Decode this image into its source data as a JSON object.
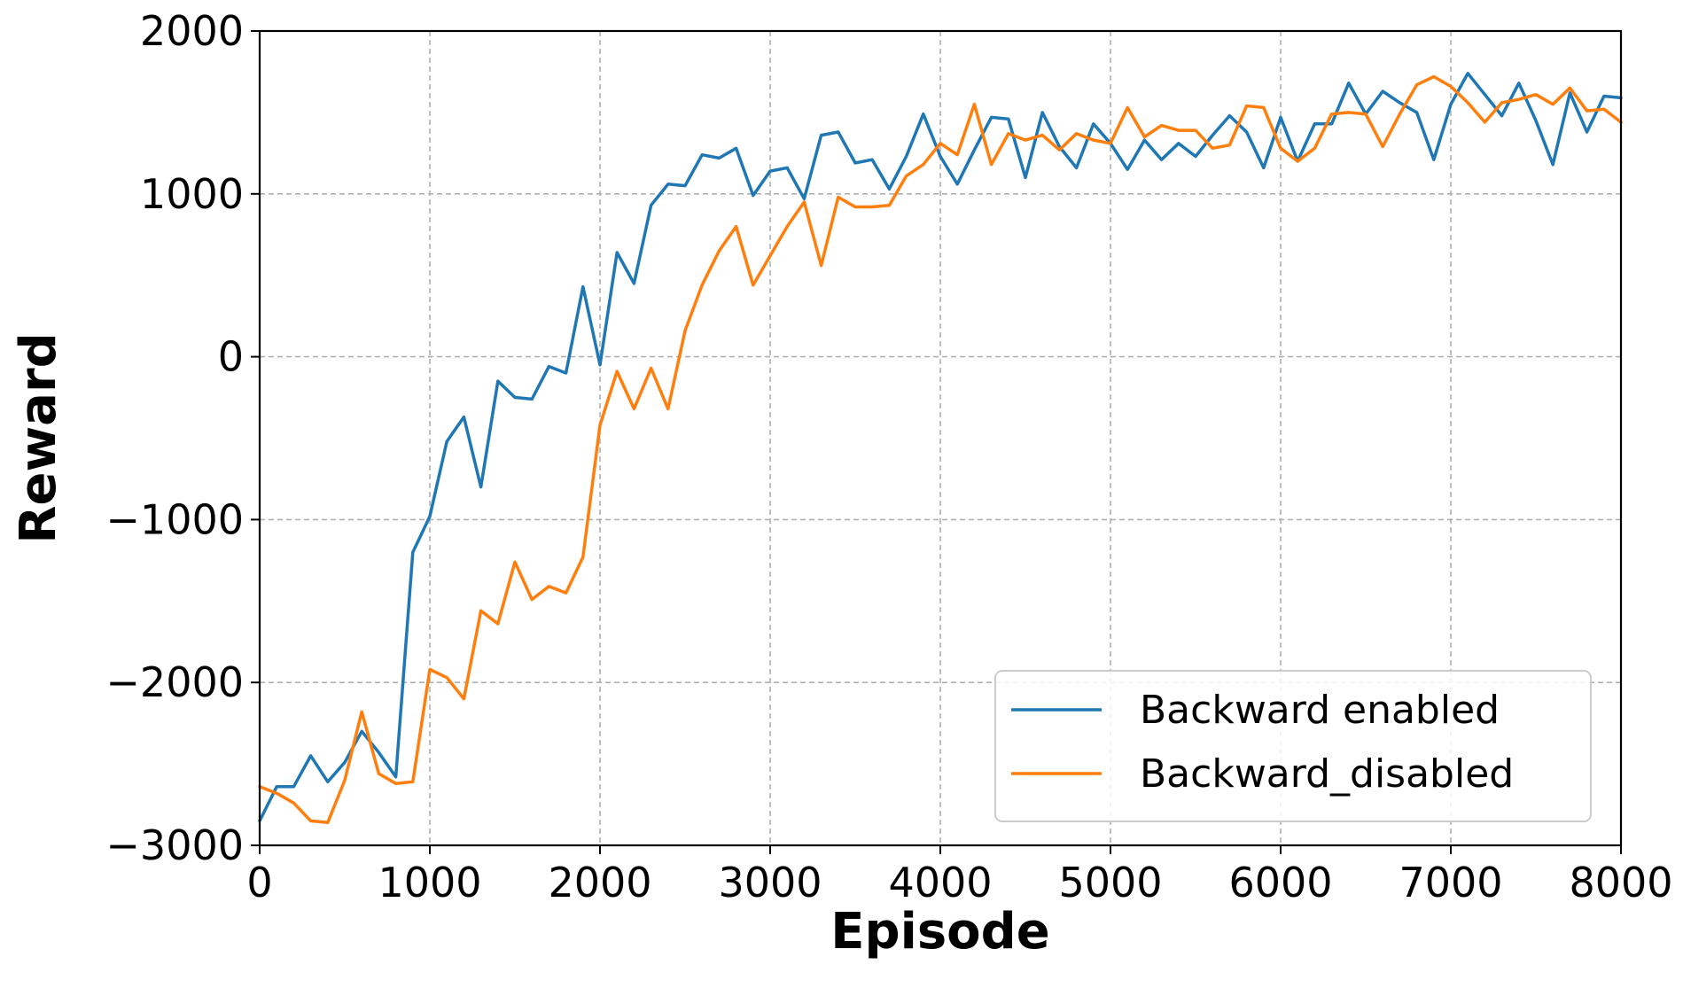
{
  "chart_data": {
    "type": "line",
    "title": "",
    "xlabel": "Episode",
    "ylabel": "Reward",
    "xlim": [
      0,
      8000
    ],
    "ylim": [
      -3000,
      2000
    ],
    "xticks": [
      0,
      1000,
      2000,
      3000,
      4000,
      5000,
      6000,
      7000,
      8000
    ],
    "yticks": [
      -3000,
      -2000,
      -1000,
      0,
      1000,
      2000
    ],
    "xtick_labels": [
      "0",
      "1000",
      "2000",
      "3000",
      "4000",
      "5000",
      "6000",
      "7000",
      "8000"
    ],
    "ytick_labels": [
      "−3000",
      "−2000",
      "−1000",
      "0",
      "1000",
      "2000"
    ],
    "grid": true,
    "legend_position": "bottom-right",
    "x": [
      0,
      100,
      200,
      300,
      400,
      500,
      600,
      700,
      800,
      900,
      1000,
      1100,
      1200,
      1300,
      1400,
      1500,
      1600,
      1700,
      1800,
      1900,
      2000,
      2100,
      2200,
      2300,
      2400,
      2500,
      2600,
      2700,
      2800,
      2900,
      3000,
      3100,
      3200,
      3300,
      3400,
      3500,
      3600,
      3700,
      3800,
      3900,
      4000,
      4100,
      4200,
      4300,
      4400,
      4500,
      4600,
      4700,
      4800,
      4900,
      5000,
      5100,
      5200,
      5300,
      5400,
      5500,
      5600,
      5700,
      5800,
      5900,
      6000,
      6100,
      6200,
      6300,
      6400,
      6500,
      6600,
      6700,
      6800,
      6900,
      7000,
      7100,
      7200,
      7300,
      7400,
      7500,
      7600,
      7700,
      7800,
      7900,
      8000
    ],
    "series": [
      {
        "name": "Backward enabled",
        "color": "#1f77b4",
        "values": [
          -2850,
          -2640,
          -2640,
          -2450,
          -2610,
          -2490,
          -2300,
          -2430,
          -2580,
          -1200,
          -980,
          -520,
          -370,
          -800,
          -150,
          -250,
          -260,
          -60,
          -100,
          430,
          -50,
          640,
          450,
          930,
          1060,
          1050,
          1240,
          1220,
          1280,
          990,
          1140,
          1160,
          970,
          1360,
          1380,
          1190,
          1210,
          1030,
          1230,
          1490,
          1230,
          1060,
          1270,
          1470,
          1460,
          1100,
          1500,
          1290,
          1160,
          1430,
          1310,
          1150,
          1330,
          1210,
          1310,
          1230,
          1360,
          1480,
          1380,
          1160,
          1470,
          1200,
          1430,
          1430,
          1680,
          1490,
          1630,
          1560,
          1500,
          1210,
          1550,
          1740,
          1610,
          1480,
          1680,
          1450,
          1180,
          1620,
          1380,
          1600,
          1590
        ]
      },
      {
        "name": "Backward_disabled",
        "color": "#ff7f0e",
        "values": [
          -2640,
          -2680,
          -2740,
          -2850,
          -2860,
          -2600,
          -2180,
          -2560,
          -2620,
          -2610,
          -1920,
          -1970,
          -2100,
          -1560,
          -1640,
          -1260,
          -1490,
          -1410,
          -1450,
          -1230,
          -420,
          -90,
          -320,
          -70,
          -320,
          160,
          440,
          650,
          800,
          440,
          620,
          800,
          950,
          560,
          980,
          920,
          920,
          930,
          1110,
          1180,
          1310,
          1240,
          1550,
          1180,
          1370,
          1330,
          1360,
          1270,
          1370,
          1330,
          1310,
          1530,
          1350,
          1420,
          1390,
          1390,
          1280,
          1300,
          1540,
          1530,
          1280,
          1200,
          1280,
          1490,
          1500,
          1490,
          1290,
          1490,
          1670,
          1720,
          1660,
          1560,
          1440,
          1560,
          1580,
          1610,
          1550,
          1650,
          1510,
          1520,
          1440
        ]
      }
    ]
  }
}
